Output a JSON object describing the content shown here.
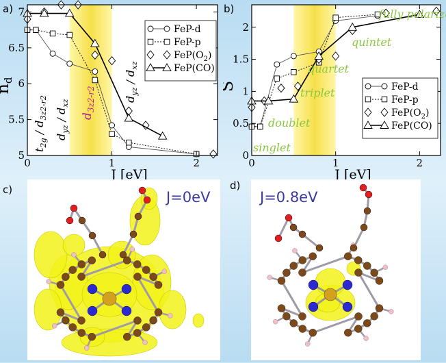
{
  "panels": {
    "a": "a)",
    "b": "b)",
    "c": "c)",
    "d": "d)"
  },
  "chart_data": [
    {
      "type": "line",
      "panel": "a)",
      "xlabel": "J [eV]",
      "ylabel": "n",
      "ylabel_sub": "d",
      "xlim": [
        0,
        2.25
      ],
      "ylim": [
        5,
        7.1
      ],
      "xticks": [
        "0",
        "1",
        "2"
      ],
      "xtick_values": [
        0,
        1,
        2
      ],
      "yticks": [
        "5",
        "5.5",
        "6",
        "6.5",
        "7"
      ],
      "ytick_values": [
        5,
        5.5,
        6,
        6.5,
        7
      ],
      "highlight_band": [
        0.5,
        1.0
      ],
      "legend": {
        "placement": "top-right",
        "entries": [
          "FeP-d",
          "FeP-p",
          "FeP(O2)",
          "FeP(CO)"
        ]
      },
      "series": [
        {
          "name": "FeP-d",
          "marker": "circle",
          "style": "thin",
          "x": [
            0,
            0.1,
            0.3,
            0.5,
            0.8,
            1.0,
            1.2,
            2.0
          ],
          "y": [
            6.75,
            6.75,
            6.42,
            6.28,
            6.17,
            5.42,
            5.12,
            5.02
          ]
        },
        {
          "name": "FeP-p",
          "marker": "square",
          "style": "dashed",
          "x": [
            0,
            0.1,
            0.3,
            0.5,
            0.8,
            1.0,
            1.2,
            2.0
          ],
          "y": [
            6.75,
            6.75,
            6.7,
            6.68,
            6.05,
            5.3,
            5.18,
            5.02
          ]
        },
        {
          "name": "FeP(O2)",
          "marker": "diamond",
          "style": "none",
          "x": [
            0.0,
            0.2,
            0.4,
            0.6,
            0.8,
            1.0,
            1.2,
            1.4,
            2.2
          ],
          "y": [
            6.9,
            7.0,
            7.1,
            7.1,
            6.4,
            6.32,
            5.62,
            5.42,
            5.02
          ]
        },
        {
          "name": "FeP(CO)",
          "marker": "triangle",
          "style": "thick",
          "x": [
            0,
            0.2,
            0.5,
            0.8,
            1.2,
            1.6
          ],
          "y": [
            6.98,
            6.98,
            6.98,
            6.56,
            5.52,
            5.27
          ]
        }
      ],
      "annotations": {
        "t2g": "t",
        "t2g_sub": "2g",
        "t2g_rest": " / d",
        "t2g_sub2": "3z2-r2",
        "dyz1": "d",
        "dyz1_sub": "yz",
        "dyz1_mid": " / d",
        "dyz1_sub2": "xz",
        "d3z2": "d",
        "d3z2_sub": "3z2-r2",
        "dyz2": "d",
        "dyz2_sub": "yz",
        "dyz2_mid": " / d",
        "dyz2_sub2": "xz"
      }
    },
    {
      "type": "line",
      "panel": "b)",
      "xlabel": "J [eV]",
      "ylabel": "S",
      "xlim": [
        0,
        2.25
      ],
      "ylim": [
        0,
        2.35
      ],
      "xticks": [
        "0",
        "1",
        "2"
      ],
      "xtick_values": [
        0,
        1,
        2
      ],
      "yticks": [
        "0",
        "0.5",
        "1",
        "1.5",
        "2"
      ],
      "ytick_values": [
        0,
        0.5,
        1,
        1.5,
        2
      ],
      "highlight_band": [
        0.5,
        1.0
      ],
      "legend": {
        "placement": "bottom-right",
        "entries": [
          "FeP-d",
          "FeP-p",
          "FeP(O2)",
          "FeP(CO)"
        ]
      },
      "series": [
        {
          "name": "FeP-d",
          "marker": "circle",
          "style": "thin",
          "x": [
            0,
            0.1,
            0.3,
            0.5,
            0.8,
            1.0,
            1.5
          ],
          "y": [
            0.45,
            0.45,
            1.42,
            1.55,
            1.62,
            2.1,
            2.18
          ]
        },
        {
          "name": "FeP-p",
          "marker": "square",
          "style": "dashed",
          "x": [
            0,
            0.1,
            0.3,
            0.5,
            0.8,
            1.0,
            1.5
          ],
          "y": [
            0.45,
            0.45,
            1.2,
            1.3,
            1.45,
            2.15,
            2.2
          ]
        },
        {
          "name": "FeP(O2)",
          "marker": "diamond",
          "style": "none",
          "x": [
            0.0,
            0.15,
            0.35,
            0.55,
            0.8,
            1.0,
            1.2,
            1.6,
            2.2
          ],
          "y": [
            0.75,
            0.85,
            1.05,
            1.08,
            1.5,
            1.55,
            1.95,
            2.22,
            2.25
          ]
        },
        {
          "name": "FeP(CO)",
          "marker": "triangle",
          "style": "thick",
          "x": [
            0,
            0.2,
            0.5,
            0.8,
            1.2,
            2.0
          ],
          "y": [
            0.85,
            0.85,
            0.88,
            1.55,
            2.0,
            2.2
          ]
        }
      ],
      "state_labels": [
        "fully polarized",
        "quintet",
        "quartet",
        "triplet",
        "doublet",
        "singlet"
      ]
    }
  ],
  "molecules": {
    "c_label": "J=0eV",
    "d_label": "J=0.8eV"
  },
  "colors": {
    "band": "#f7e04a",
    "state_text": "#8cc63f",
    "mol_label": "#3a3aa0",
    "iso": "#f2f21a",
    "carbon": "#7a4a1c",
    "nitrogen": "#2a2ad0",
    "oxygen": "#e02020",
    "hydrogen": "#f0c0c8",
    "iron": "#d4a020"
  }
}
